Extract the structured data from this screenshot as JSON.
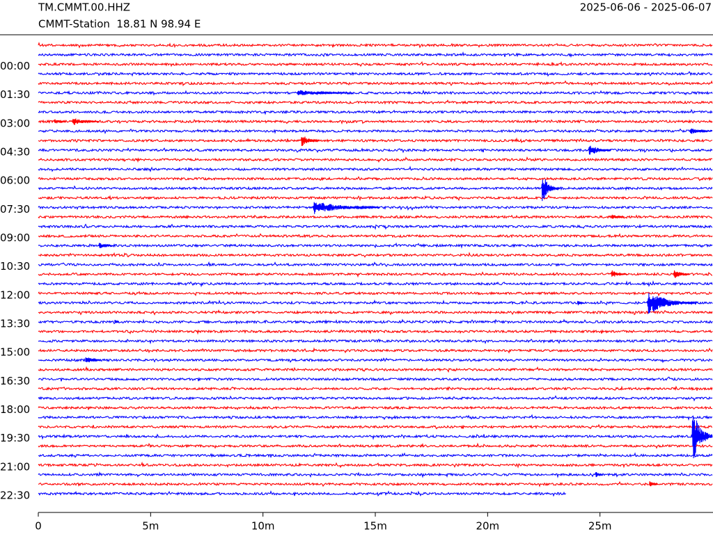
{
  "chart_data": {
    "type": "helicorder",
    "title": "TM.CMMT.00.HHZ",
    "subtitle": "CMMT-Station  18.81 N 98.94 E",
    "date_range": "2025-06-06 - 2025-06-07",
    "colors": [
      "#ff0000",
      "#0000ff"
    ],
    "xlim": [
      0,
      30
    ],
    "last_row_end": 23.5,
    "xticks": [
      {
        "value": 0,
        "label": "0"
      },
      {
        "value": 5,
        "label": "5m"
      },
      {
        "value": 10,
        "label": "10m"
      },
      {
        "value": 15,
        "label": "15m"
      },
      {
        "value": 20,
        "label": "20m"
      },
      {
        "value": 25,
        "label": "25m"
      }
    ],
    "categories": [
      null,
      null,
      "00:00",
      null,
      null,
      "01:30",
      null,
      null,
      "03:00",
      null,
      null,
      "04:30",
      null,
      null,
      "06:00",
      null,
      null,
      "07:30",
      null,
      null,
      "09:00",
      null,
      null,
      "10:30",
      null,
      null,
      "12:00",
      null,
      null,
      "13:30",
      null,
      null,
      "15:00",
      null,
      null,
      "16:30",
      null,
      null,
      "18:00",
      null,
      null,
      "19:30",
      null,
      null,
      "21:00",
      null,
      null,
      "22:30"
    ],
    "events": [
      {
        "row": 5,
        "x": 11.5,
        "amp": 0.35,
        "dur": 2.5
      },
      {
        "row": 8,
        "x": 0.7,
        "amp": 0.4,
        "dur": 0.5
      },
      {
        "row": 8,
        "x": 1.5,
        "amp": 0.5,
        "dur": 1.2
      },
      {
        "row": 9,
        "x": 29,
        "amp": 0.4,
        "dur": 1
      },
      {
        "row": 10,
        "x": 11.7,
        "amp": 0.8,
        "dur": 0.8
      },
      {
        "row": 11,
        "x": 24.5,
        "amp": 0.8,
        "dur": 1
      },
      {
        "row": 15,
        "x": 22.4,
        "amp": 1.8,
        "dur": 0.8
      },
      {
        "row": 17,
        "x": 12.2,
        "amp": 0.8,
        "dur": 3
      },
      {
        "row": 18,
        "x": 25.5,
        "amp": 0.4,
        "dur": 0.6
      },
      {
        "row": 21,
        "x": 2.7,
        "amp": 0.4,
        "dur": 0.6
      },
      {
        "row": 24,
        "x": 25.5,
        "amp": 0.5,
        "dur": 0.7
      },
      {
        "row": 24,
        "x": 28.3,
        "amp": 0.7,
        "dur": 0.7
      },
      {
        "row": 27,
        "x": 24,
        "amp": 0.4,
        "dur": 0.3
      },
      {
        "row": 27,
        "x": 27.1,
        "amp": 1.4,
        "dur": 2.2
      },
      {
        "row": 29,
        "x": 3.4,
        "amp": 0.4,
        "dur": 0.2
      },
      {
        "row": 33,
        "x": 2.1,
        "amp": 0.5,
        "dur": 0.7
      },
      {
        "row": 41,
        "x": 29.1,
        "amp": 3.5,
        "dur": 0.9
      },
      {
        "row": 45,
        "x": 24.8,
        "amp": 0.5,
        "dur": 0.3
      },
      {
        "row": 46,
        "x": 27.2,
        "amp": 0.4,
        "dur": 0.4
      }
    ]
  }
}
